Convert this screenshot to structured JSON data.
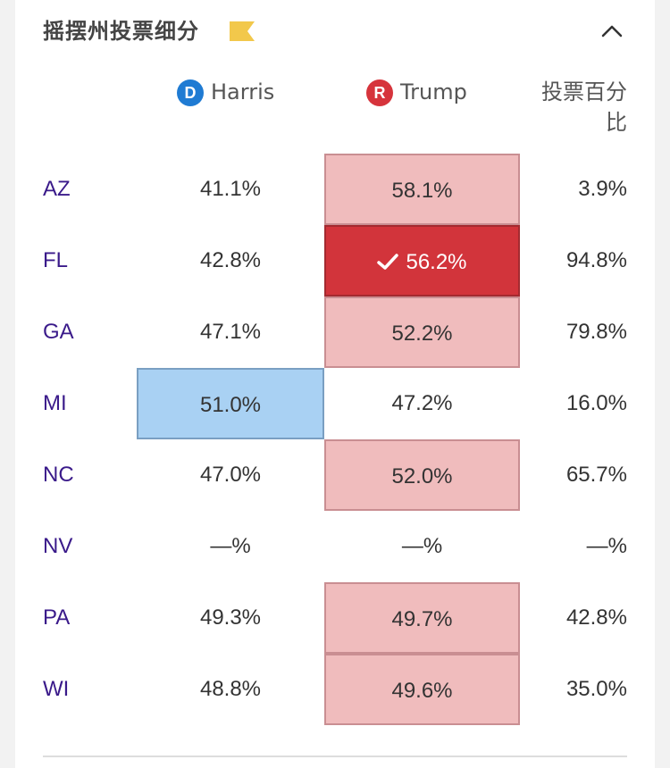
{
  "header": {
    "title": "摇摆州投票细分"
  },
  "columns": {
    "harris": {
      "badge": "D",
      "name": "Harris"
    },
    "trump": {
      "badge": "R",
      "name": "Trump"
    },
    "pct_label": "投票百分比"
  },
  "colors": {
    "dem_badge": "#1f7bd3",
    "rep_badge": "#d6343c",
    "dem_lead": "#a9d1f3",
    "rep_lead": "#f0bcbd",
    "rep_called": "#d2343b",
    "state_text": "#3a1a8a"
  },
  "rows": [
    {
      "state": "AZ",
      "harris": "41.1%",
      "trump": "58.1%",
      "pct": "3.9%"
    },
    {
      "state": "FL",
      "harris": "42.8%",
      "trump": "56.2%",
      "pct": "94.8%"
    },
    {
      "state": "GA",
      "harris": "47.1%",
      "trump": "52.2%",
      "pct": "79.8%"
    },
    {
      "state": "MI",
      "harris": "51.0%",
      "trump": "47.2%",
      "pct": "16.0%"
    },
    {
      "state": "NC",
      "harris": "47.0%",
      "trump": "52.0%",
      "pct": "65.7%"
    },
    {
      "state": "NV",
      "harris": "—%",
      "trump": "—%",
      "pct": "—%"
    },
    {
      "state": "PA",
      "harris": "49.3%",
      "trump": "49.7%",
      "pct": "42.8%"
    },
    {
      "state": "WI",
      "harris": "48.8%",
      "trump": "49.6%",
      "pct": "35.0%"
    }
  ]
}
